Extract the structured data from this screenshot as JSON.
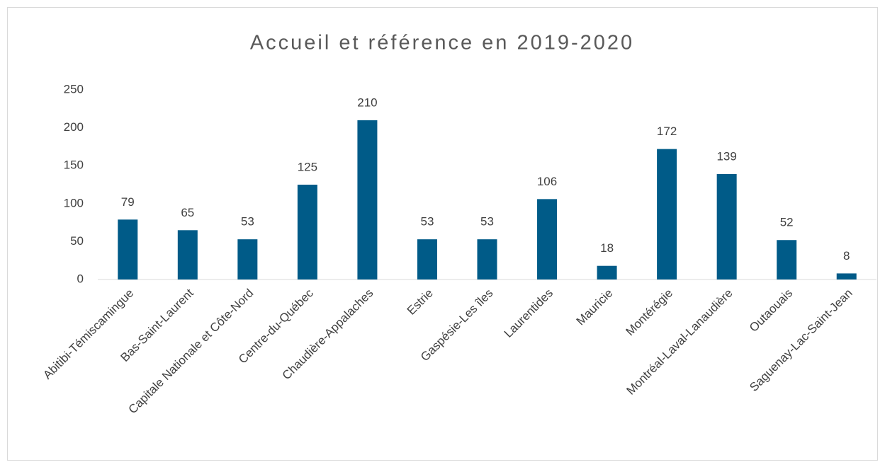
{
  "chart_data": {
    "type": "bar",
    "title": "Accueil et référence en 2019-2020",
    "categories": [
      "Abitibi-Témiscamingue",
      "Bas-Saint-Laurent",
      "Capitale Nationale et Côte-Nord",
      "Centre-du-Québec",
      "Chaudière-Appalaches",
      "Estrie",
      "Gaspésie-Les îles",
      "Laurentides",
      "Mauricie",
      "Montérégie",
      "Montréal-Laval-Lanaudière",
      "Outaouais",
      "Saguenay-Lac-Saint-Jean"
    ],
    "values": [
      79,
      65,
      53,
      125,
      210,
      53,
      53,
      106,
      18,
      172,
      139,
      52,
      8
    ],
    "color": "#005b88",
    "ylim": [
      0,
      250
    ],
    "yticks": [
      0,
      50,
      100,
      150,
      200,
      250
    ],
    "grid": false
  }
}
